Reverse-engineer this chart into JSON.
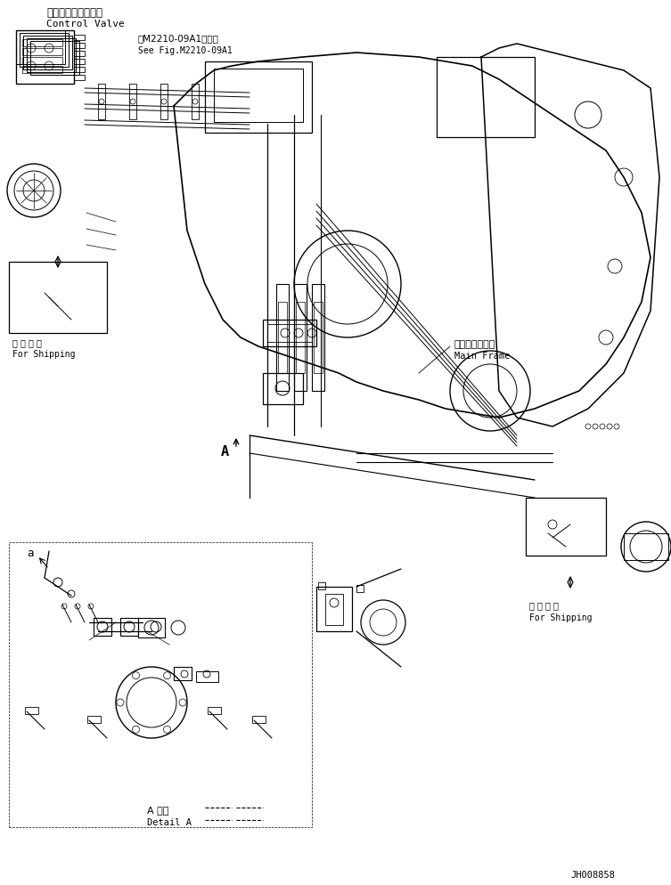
{
  "bg_color": "#ffffff",
  "line_color": "#000000",
  "fig_width": 7.53,
  "fig_height": 9.95,
  "dpi": 100,
  "title_jp": "コントロールバルブ",
  "title_en": "Control Valve",
  "note_jp": "第M2210-09A1図参照",
  "note_en": "See Fig.M2210-09A1",
  "label_main_frame_jp": "メインフレーム",
  "label_main_frame_en": "Main Frame",
  "label_shipping_jp1": "運 携 部 品",
  "label_shipping_en1": "For Shipping",
  "label_shipping_jp2": "運 携 部 品",
  "label_shipping_en2": "For Shipping",
  "label_detail_jp": "A 詳細",
  "label_detail_en": "Detail A",
  "label_a": "A",
  "label_a_small": "a",
  "doc_id": "JH008858"
}
